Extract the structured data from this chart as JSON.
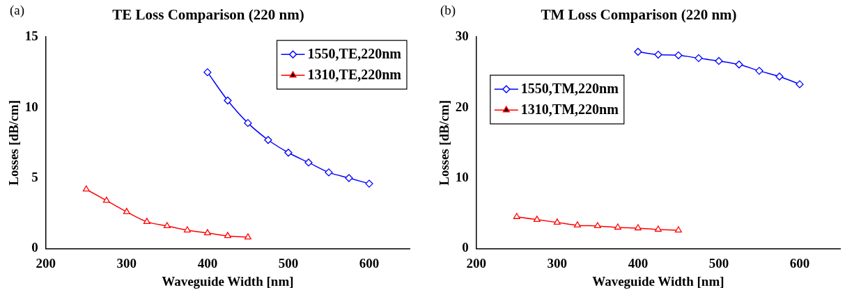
{
  "chart_data": [
    {
      "type": "line",
      "title": "TE Loss Comparison (220 nm)",
      "xlabel": "Waveguide Width [nm]",
      "ylabel": "Losses [dB/cm]",
      "annotations": [
        "(a)"
      ],
      "xlim": [
        200,
        650
      ],
      "xticks": [
        200,
        300,
        400,
        500,
        600
      ],
      "ylim": [
        0,
        15
      ],
      "yticks": [
        0,
        5,
        10,
        15
      ],
      "grid": false,
      "legend": "top right",
      "series": [
        {
          "name": "1550,TE,220nm",
          "color": "#0000ff",
          "marker": "diamond",
          "x": [
            400,
            425,
            450,
            475,
            500,
            525,
            550,
            575,
            600
          ],
          "values": [
            12.5,
            10.5,
            8.9,
            7.7,
            6.8,
            6.1,
            5.4,
            5.0,
            4.6
          ]
        },
        {
          "name": "1310,TE,220nm",
          "color": "#ff0000",
          "marker": "triangle",
          "x": [
            250,
            275,
            300,
            325,
            350,
            375,
            400,
            425,
            450
          ],
          "values": [
            4.2,
            3.4,
            2.6,
            1.9,
            1.6,
            1.3,
            1.1,
            0.9,
            0.8
          ]
        }
      ]
    },
    {
      "type": "line",
      "title": "TM Loss Comparison (220 nm)",
      "xlabel": "Waveguide Width [nm]",
      "ylabel": "Losses [dB/cm]",
      "annotations": [
        "(b)"
      ],
      "xlim": [
        200,
        650
      ],
      "xticks": [
        200,
        300,
        400,
        500,
        600
      ],
      "ylim": [
        0,
        30
      ],
      "yticks": [
        0,
        10,
        20,
        30
      ],
      "grid": false,
      "legend": "top left",
      "series": [
        {
          "name": "1550,TM,220nm",
          "color": "#0000ff",
          "marker": "diamond",
          "x": [
            400,
            425,
            450,
            475,
            500,
            525,
            550,
            575,
            600
          ],
          "values": [
            27.9,
            27.5,
            27.4,
            27.0,
            26.6,
            26.1,
            25.2,
            24.4,
            23.3
          ]
        },
        {
          "name": "1310,TM,220nm",
          "color": "#ff0000",
          "marker": "triangle",
          "x": [
            250,
            275,
            300,
            325,
            350,
            375,
            400,
            425,
            450
          ],
          "values": [
            4.5,
            4.1,
            3.7,
            3.3,
            3.2,
            3.0,
            2.9,
            2.7,
            2.6
          ]
        }
      ]
    }
  ]
}
